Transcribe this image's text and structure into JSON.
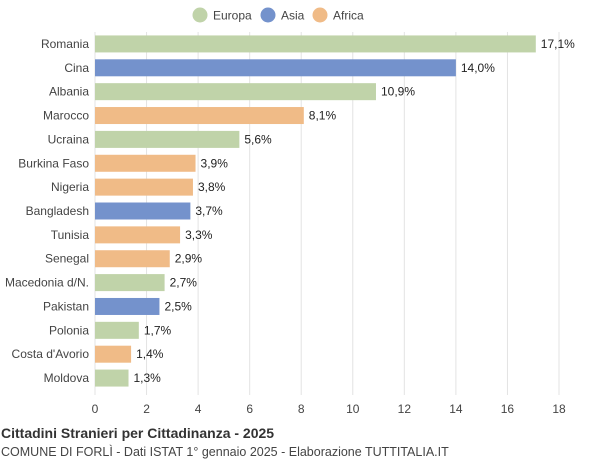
{
  "chart_data": {
    "type": "bar",
    "orientation": "horizontal",
    "title": "Cittadini Stranieri per Cittadinanza - 2025",
    "subtitle": "COMUNE DI FORLÌ - Dati ISTAT 1° gennaio 2025 - Elaborazione TUTTITALIA.IT",
    "legend": {
      "placement": "top-center",
      "entries": [
        {
          "name": "Europa",
          "color": "#c0d3a9"
        },
        {
          "name": "Asia",
          "color": "#7492cc"
        },
        {
          "name": "Africa",
          "color": "#f0bb87"
        }
      ]
    },
    "xlim": [
      0,
      18
    ],
    "xticks": [
      "0",
      "2",
      "4",
      "6",
      "8",
      "10",
      "12",
      "14",
      "16",
      "18"
    ],
    "grid": true,
    "categories": [
      "Romania",
      "Cina",
      "Albania",
      "Marocco",
      "Ucraina",
      "Burkina Faso",
      "Nigeria",
      "Bangladesh",
      "Tunisia",
      "Senegal",
      "Macedonia d/N.",
      "Pakistan",
      "Polonia",
      "Costa d'Avorio",
      "Moldova"
    ],
    "values": [
      17.1,
      14.0,
      10.9,
      8.1,
      5.6,
      3.9,
      3.8,
      3.7,
      3.3,
      2.9,
      2.7,
      2.5,
      1.7,
      1.4,
      1.3
    ],
    "value_labels": [
      "17,1%",
      "14,0%",
      "10,9%",
      "8,1%",
      "5,6%",
      "3,9%",
      "3,8%",
      "3,7%",
      "3,3%",
      "2,9%",
      "2,7%",
      "2,5%",
      "1,7%",
      "1,4%",
      "1,3%"
    ],
    "groups": [
      "Europa",
      "Asia",
      "Europa",
      "Africa",
      "Europa",
      "Africa",
      "Africa",
      "Asia",
      "Africa",
      "Africa",
      "Europa",
      "Asia",
      "Europa",
      "Africa",
      "Europa"
    ]
  }
}
